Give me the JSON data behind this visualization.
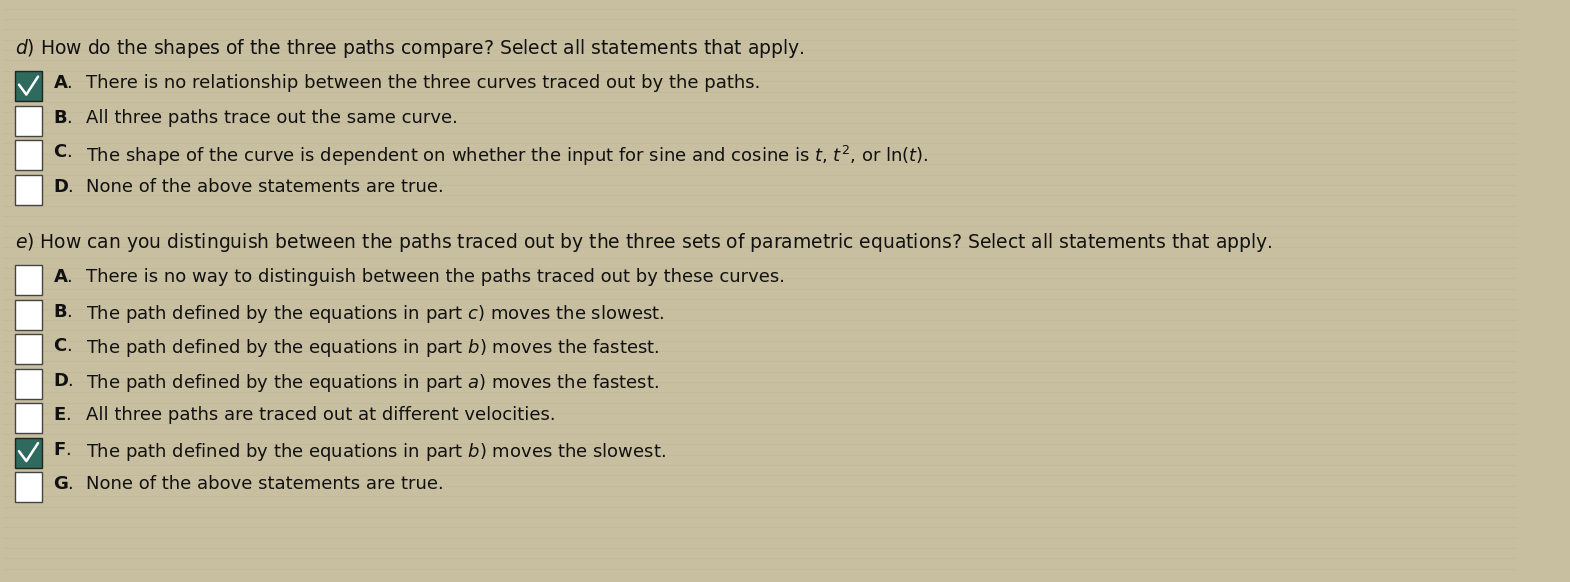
{
  "background_color": "#c8bfa0",
  "text_color": "#111111",
  "fig_width": 15.7,
  "fig_height": 5.82,
  "dpi": 100,
  "section_d": {
    "question_prefix": "d",
    "question_body": ") How do the shapes of the three paths compare? Select all statements that apply.",
    "options": [
      {
        "label": "A",
        "text": "There is no relationship between the three curves traced out by the paths.",
        "checked": true
      },
      {
        "label": "B",
        "text": "All three paths trace out the same curve.",
        "checked": false
      },
      {
        "label": "C",
        "text": "The shape of the curve is dependent on whether the input for sine and cosine is $t$, $t^2$, or $\\mathrm{ln}(t)$.",
        "checked": false
      },
      {
        "label": "D",
        "text": "None of the above statements are true.",
        "checked": false
      }
    ]
  },
  "section_e": {
    "question_prefix": "e",
    "question_body": ") How can you distinguish between the paths traced out by the three sets of parametric equations? Select all statements that apply.",
    "options": [
      {
        "label": "A",
        "text": "There is no way to distinguish between the paths traced out by these curves.",
        "checked": false
      },
      {
        "label": "B",
        "text": "The path defined by the equations in part $c$) moves the slowest.",
        "checked": false
      },
      {
        "label": "C",
        "text": "The path defined by the equations in part $b$) moves the fastest.",
        "checked": false
      },
      {
        "label": "D",
        "text": "The path defined by the equations in part $a$) moves the fastest.",
        "checked": false
      },
      {
        "label": "E",
        "text": "All three paths are traced out at different velocities.",
        "checked": false
      },
      {
        "label": "F",
        "text": "The path defined by the equations in part $b$) moves the slowest.",
        "checked": true
      },
      {
        "label": "G",
        "text": "None of the above statements are true.",
        "checked": false
      }
    ]
  }
}
